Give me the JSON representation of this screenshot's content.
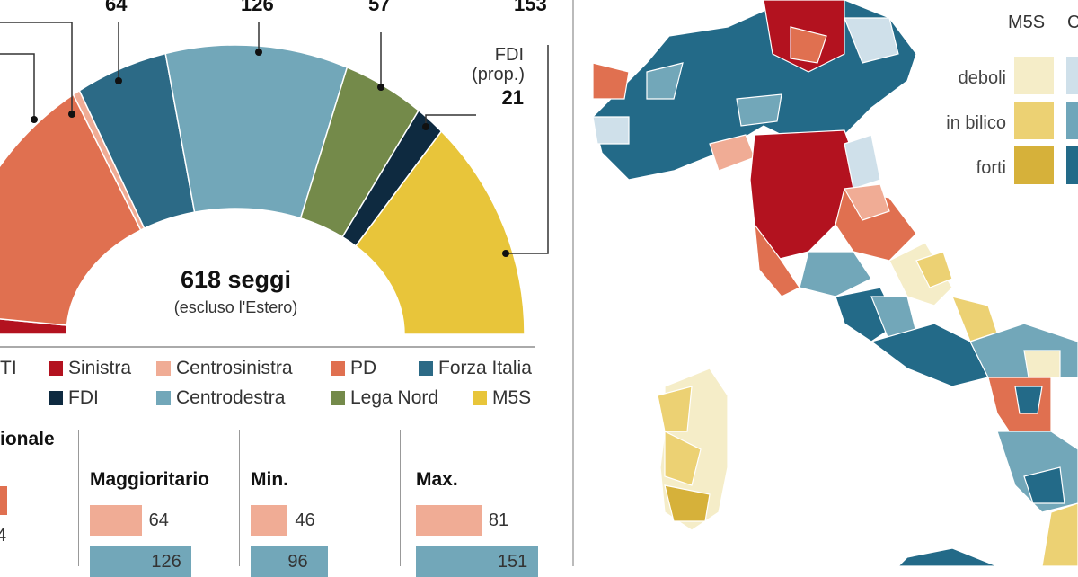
{
  "chart_data": {
    "type": "pie",
    "subtype": "semicircle-parliament",
    "title": "618 seggi",
    "subtitle": "(escluso l'Estero)",
    "segments": [
      {
        "name": "Sinistra",
        "value": 14,
        "color": "#b3121f",
        "label": ""
      },
      {
        "name": "PD",
        "value": 178,
        "color": "#e07050",
        "label": ""
      },
      {
        "name": "Centrosinistra",
        "value": 5,
        "color": "#f0ac95",
        "label": ""
      },
      {
        "name": "Forza Italia",
        "value": 64,
        "color": "#2c6a86",
        "label": "64"
      },
      {
        "name": "Centrodestra",
        "value": 126,
        "color": "#72a7b9",
        "label": "126"
      },
      {
        "name": "Lega Nord",
        "value": 57,
        "color": "#748a4a",
        "label": "57"
      },
      {
        "name": "FDI",
        "value": 21,
        "color": "#0e2a40",
        "label": "21"
      },
      {
        "name": "M5S",
        "value": 153,
        "color": "#e8c53a",
        "label": "153"
      }
    ],
    "fdi_note": "FDI",
    "fdi_note2": "(prop.)"
  },
  "legend": [
    {
      "label": "TI",
      "color": ""
    },
    {
      "label": "Sinistra",
      "color": "#b3121f"
    },
    {
      "label": "Centrosinistra",
      "color": "#f0ac95"
    },
    {
      "label": "PD",
      "color": "#e07050"
    },
    {
      "label": "Forza Italia",
      "color": "#2c6a86"
    },
    {
      "label": "FDI",
      "color": "#0e2a40"
    },
    {
      "label": "Centrodestra",
      "color": "#72a7b9"
    },
    {
      "label": "Lega Nord",
      "color": "#748a4a"
    },
    {
      "label": "M5S",
      "color": "#e8c53a"
    }
  ],
  "bars": {
    "partial_heading": "ionale",
    "partial_value": "4",
    "groups": [
      {
        "heading": "Maggioritario",
        "values": [
          {
            "series": "Centrosinistra",
            "value": 64
          },
          {
            "series": "Centrodestra",
            "value": 126
          }
        ]
      },
      {
        "heading": "Min.",
        "values": [
          {
            "series": "Centrosinistra",
            "value": 46
          },
          {
            "series": "Centrodestra",
            "value": 96
          }
        ]
      },
      {
        "heading": "Max.",
        "values": [
          {
            "series": "Centrosinistra",
            "value": 81
          },
          {
            "series": "Centrodestra",
            "value": 151
          }
        ]
      }
    ]
  },
  "map_legend": {
    "columns": [
      "M5S",
      "C"
    ],
    "rows": [
      "deboli",
      "in bilico",
      "forti"
    ],
    "m5s_colors": [
      "#f5edc8",
      "#ecd173",
      "#d6b13a"
    ],
    "c_colors": [
      "#cfe0ea",
      "#6fa6ba",
      "#236a88"
    ]
  }
}
